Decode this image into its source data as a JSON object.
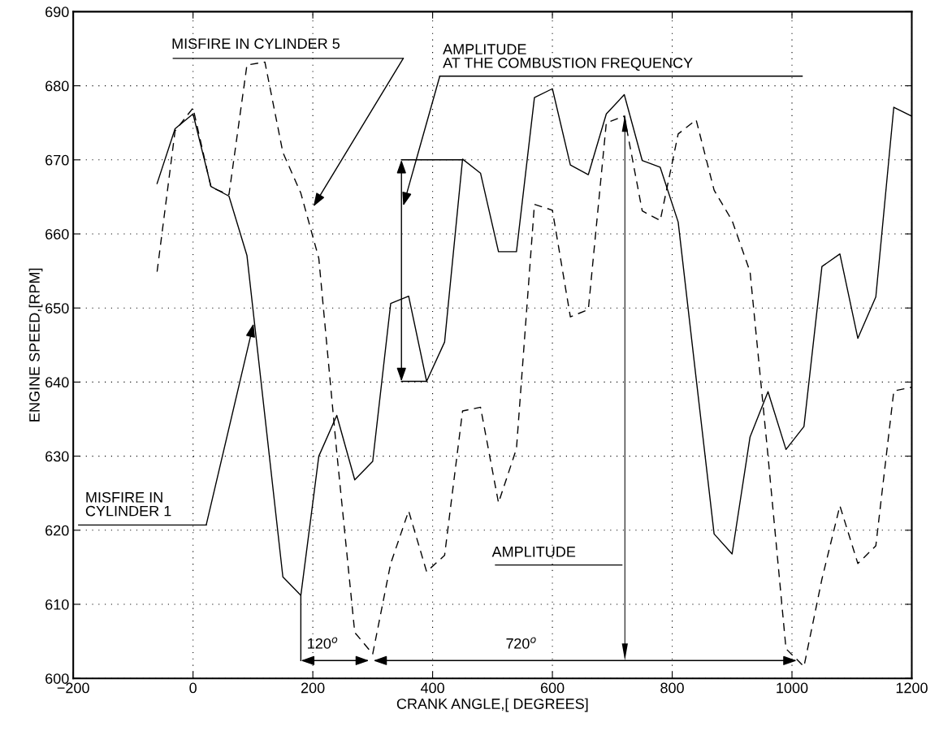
{
  "chart_data": {
    "type": "line",
    "xlabel": "CRANK ANGLE,[ DEGREES]",
    "ylabel": "ENGINE SPEED,[RPM]",
    "x": [
      -60,
      -30,
      0,
      30,
      60,
      90,
      120,
      150,
      180,
      210,
      240,
      270,
      300,
      330,
      360,
      390,
      420,
      450,
      480,
      510,
      540,
      570,
      600,
      630,
      660,
      690,
      720,
      750,
      780,
      810,
      840,
      870,
      900,
      930,
      960,
      990,
      1020,
      1050,
      1080,
      1110,
      1140,
      1170,
      1200
    ],
    "series": [
      {
        "color": "#000000",
        "line_style": "solid",
        "values": [
          666.8,
          674.2,
          676.2,
          666.4,
          665.1,
          657.1,
          635.4,
          613.7,
          611.2,
          630.0,
          635.5,
          626.8,
          629.3,
          650.6,
          651.6,
          640.1,
          645.4,
          670.1,
          668.2,
          657.6,
          657.6,
          678.4,
          679.6,
          669.3,
          668.0,
          676.2,
          678.8,
          669.9,
          669.0,
          661.6,
          640.5,
          619.5,
          616.8,
          632.6,
          638.7,
          630.9,
          634.0,
          655.6,
          657.3,
          645.9,
          651.5,
          677.1,
          675.9
        ]
      },
      {
        "color": "#000000",
        "line_style": "dashed",
        "values": [
          654.9,
          673.9,
          677.0,
          666.3,
          665.3,
          682.8,
          683.2,
          671.0,
          665.5,
          656.7,
          630.5,
          606.2,
          603.3,
          615.5,
          622.6,
          614.4,
          616.6,
          636.1,
          636.6,
          623.7,
          631.0,
          664.0,
          663.2,
          648.8,
          649.8,
          675.0,
          675.9,
          663.1,
          661.8,
          673.5,
          675.4,
          665.9,
          661.8,
          654.9,
          630.0,
          604.0,
          601.6,
          613.4,
          623.3,
          615.5,
          617.9,
          638.8,
          639.3
        ]
      }
    ],
    "xlim": [
      -200,
      1200
    ],
    "ylim": [
      600,
      690
    ],
    "xticks": [
      {
        "value": -200,
        "label": "−200"
      },
      0,
      200,
      400,
      600,
      800,
      1000,
      1200
    ],
    "yticks": [
      600,
      610,
      620,
      630,
      640,
      650,
      660,
      670,
      680,
      690
    ],
    "grid": true,
    "marker": "none",
    "annotations": [
      "MISFIRE IN CYLINDER 5",
      "AMPLITUDE\nAT THE COMBUSTION FREQUENCY",
      "MISFIRE IN\nCYLINDER 1",
      "AMPLITUDE",
      {
        "text": "120$^{o}$",
        "x": 180,
        "y": 611.2
      },
      "720$^{o}$"
    ]
  }
}
